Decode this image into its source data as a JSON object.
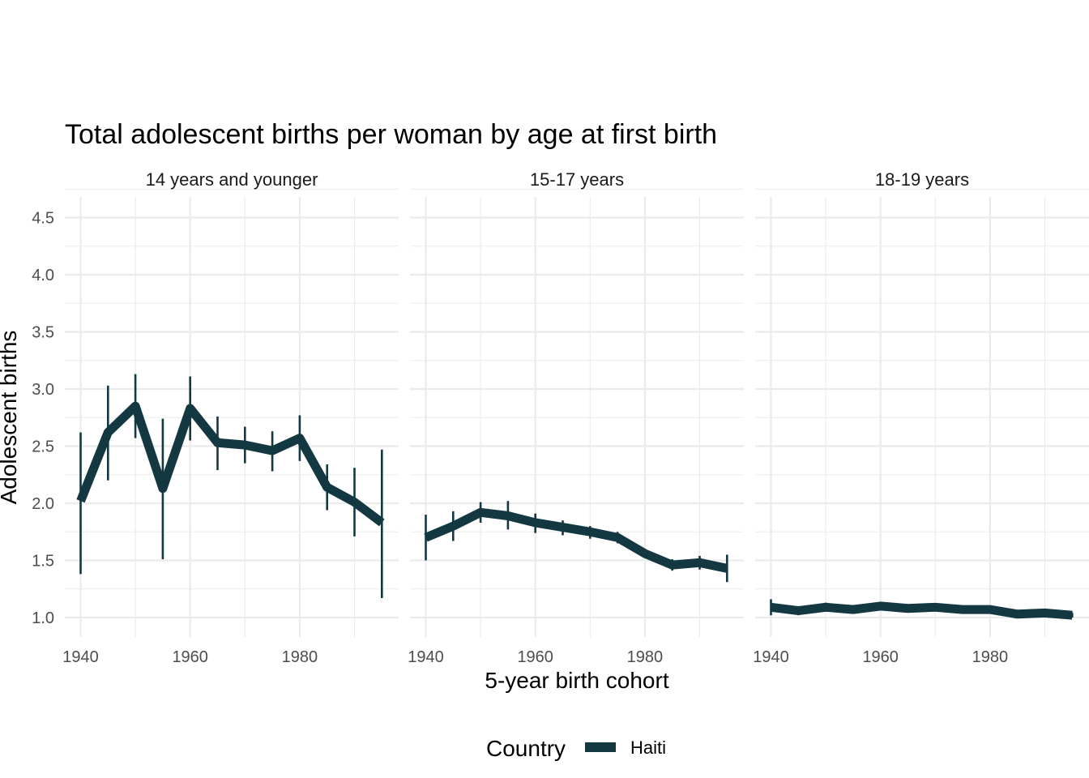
{
  "chart_data": {
    "type": "line",
    "title": "Total adolescent births per woman by age at first birth",
    "xlabel": "5-year birth cohort",
    "ylabel": "Adolescent births",
    "xlim": [
      1940,
      1995
    ],
    "ylim": [
      1.0,
      4.5
    ],
    "x_ticks": [
      1940,
      1960,
      1980
    ],
    "y_ticks": [
      "1.0",
      "1.5",
      "2.0",
      "2.5",
      "3.0",
      "3.5",
      "4.0",
      "4.5"
    ],
    "grid": true,
    "legend": {
      "title": "Country",
      "position": "bottom",
      "entries": [
        {
          "name": "Haiti",
          "color": "#143842"
        }
      ]
    },
    "color": "#143842",
    "panels": [
      {
        "label": "14 years and younger",
        "series": [
          {
            "name": "Haiti",
            "x": [
              1940,
              1945,
              1950,
              1955,
              1960,
              1965,
              1970,
              1975,
              1980,
              1985,
              1990,
              1995
            ],
            "values": [
              2.02,
              2.62,
              2.85,
              2.13,
              2.83,
              2.53,
              2.51,
              2.46,
              2.57,
              2.14,
              2.01,
              1.83
            ],
            "lower": [
              1.38,
              2.2,
              2.57,
              1.51,
              2.55,
              2.29,
              2.35,
              2.28,
              2.37,
              1.94,
              1.71,
              1.17
            ],
            "upper": [
              2.62,
              3.03,
              3.13,
              2.74,
              3.11,
              2.76,
              2.67,
              2.63,
              2.77,
              2.34,
              2.31,
              2.47
            ]
          }
        ]
      },
      {
        "label": "15-17 years",
        "series": [
          {
            "name": "Haiti",
            "x": [
              1940,
              1945,
              1950,
              1955,
              1960,
              1965,
              1970,
              1975,
              1980,
              1985,
              1990,
              1995
            ],
            "values": [
              1.7,
              1.8,
              1.92,
              1.89,
              1.83,
              1.79,
              1.75,
              1.7,
              1.56,
              1.46,
              1.48,
              1.43
            ],
            "lower": [
              1.5,
              1.67,
              1.83,
              1.77,
              1.74,
              1.72,
              1.69,
              1.65,
              1.52,
              1.41,
              1.42,
              1.31
            ],
            "upper": [
              1.9,
              1.93,
              2.01,
              2.02,
              1.91,
              1.85,
              1.8,
              1.75,
              1.6,
              1.51,
              1.54,
              1.55
            ]
          }
        ]
      },
      {
        "label": "18-19 years",
        "series": [
          {
            "name": "Haiti",
            "x": [
              1940,
              1945,
              1950,
              1955,
              1960,
              1965,
              1970,
              1975,
              1980,
              1985,
              1990,
              1995
            ],
            "values": [
              1.09,
              1.06,
              1.09,
              1.07,
              1.1,
              1.08,
              1.09,
              1.07,
              1.07,
              1.03,
              1.04,
              1.02
            ],
            "lower": [
              1.02,
              1.02,
              1.05,
              1.04,
              1.07,
              1.06,
              1.07,
              1.05,
              1.05,
              1.01,
              1.02,
              1.0
            ],
            "upper": [
              1.16,
              1.1,
              1.13,
              1.1,
              1.13,
              1.1,
              1.11,
              1.09,
              1.09,
              1.05,
              1.06,
              1.04
            ]
          }
        ]
      }
    ]
  }
}
